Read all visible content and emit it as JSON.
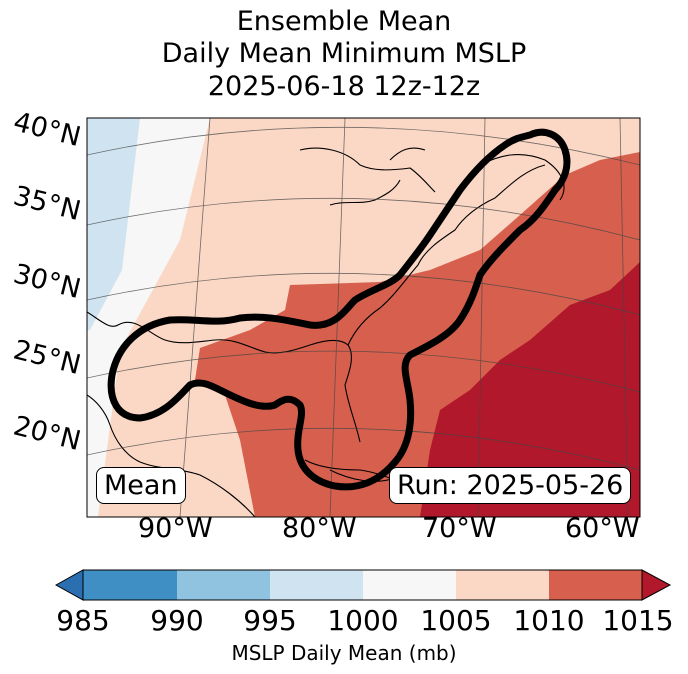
{
  "title": {
    "line1": "Ensemble Mean",
    "line2": "Daily Mean Minimum MSLP",
    "line3": "2025-06-18 12z-12z"
  },
  "map": {
    "lat_labels": [
      "40°N",
      "35°N",
      "30°N",
      "25°N",
      "20°N"
    ],
    "lon_labels": [
      "90°W",
      "80°W",
      "70°W",
      "60°W"
    ],
    "mean_label": "Mean",
    "run_label": "Run: 2025-05-26",
    "colors": {
      "c985": "#2b6fb0",
      "c990": "#3f8fc5",
      "c995": "#90c3df",
      "c1000": "#cfe4f0",
      "c1005": "#f7f7f7",
      "c1010": "#fbd8c5",
      "c1015": "#d6604d",
      "cmax": "#b2182b"
    }
  },
  "colorbar": {
    "ticks": [
      "985",
      "990",
      "995",
      "1000",
      "1005",
      "1010",
      "1015"
    ],
    "label": "MSLP Daily Mean (mb)"
  }
}
